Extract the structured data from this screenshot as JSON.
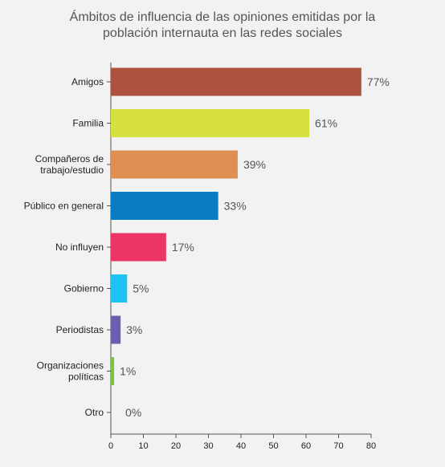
{
  "chart_data": {
    "type": "bar",
    "orientation": "horizontal",
    "title_lines": [
      "Ámbitos de influencia de las opiniones emitidas por la",
      "población internauta en las redes sociales"
    ],
    "xlabel": "",
    "ylabel": "",
    "xlim": [
      0,
      80
    ],
    "x_ticks": [
      "0",
      "10",
      "20",
      "30",
      "40",
      "50",
      "60",
      "70",
      "80"
    ],
    "grid": false,
    "legend": "none",
    "value_suffix": "%",
    "bars": [
      {
        "label_lines": [
          "Amigos"
        ],
        "value": 77,
        "value_label": "77%",
        "color": "#ad523e"
      },
      {
        "label_lines": [
          "Familia"
        ],
        "value": 61,
        "value_label": "61%",
        "color": "#d6e041"
      },
      {
        "label_lines": [
          "Compañeros de",
          "trabajo/estudio"
        ],
        "value": 39,
        "value_label": "39%",
        "color": "#e08f54"
      },
      {
        "label_lines": [
          "Público en general"
        ],
        "value": 33,
        "value_label": "33%",
        "color": "#0a7cc4"
      },
      {
        "label_lines": [
          "No influyen"
        ],
        "value": 17,
        "value_label": "17%",
        "color": "#ec3567"
      },
      {
        "label_lines": [
          "Gobierno"
        ],
        "value": 5,
        "value_label": "5%",
        "color": "#1ec3f1"
      },
      {
        "label_lines": [
          "Periodistas"
        ],
        "value": 3,
        "value_label": "3%",
        "color": "#6d5fae"
      },
      {
        "label_lines": [
          "Organizaciones",
          "políticas"
        ],
        "value": 1,
        "value_label": "1%",
        "color": "#7dc242"
      },
      {
        "label_lines": [
          "Otro"
        ],
        "value": 0,
        "value_label": "0%",
        "color": "#7dc242"
      }
    ]
  }
}
